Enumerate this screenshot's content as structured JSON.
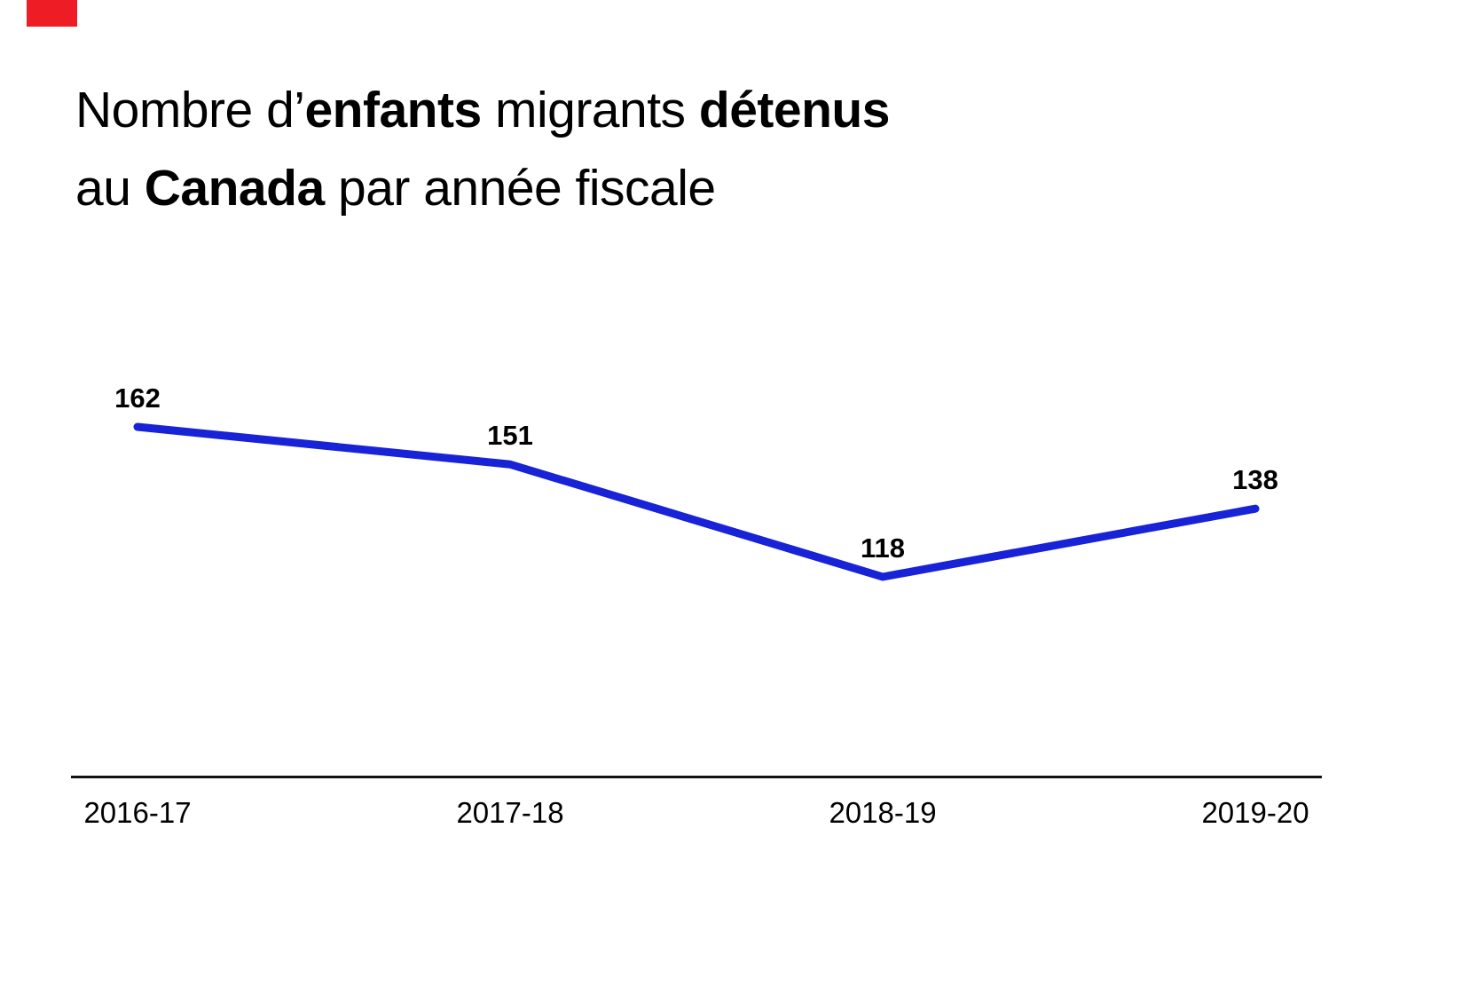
{
  "header": {
    "title_plain": "Nombre d’enfants migrants détenus au Canada par année fiscale",
    "title_segments": [
      {
        "text": "Nombre d’",
        "bold": false
      },
      {
        "text": "enfants",
        "bold": true
      },
      {
        "text": " migrants ",
        "bold": false
      },
      {
        "text": "détenus",
        "bold": true
      },
      {
        "br": true
      },
      {
        "text": "au ",
        "bold": false
      },
      {
        "text": "Canada",
        "bold": true
      },
      {
        "text": " par année fiscale",
        "bold": false
      }
    ]
  },
  "colors": {
    "accent_red": "#ee1c24",
    "line_blue": "#1822d6",
    "axis_black": "#111111",
    "text_black": "#000000",
    "background": "#ffffff"
  },
  "chart_data": {
    "type": "line",
    "title": "Nombre d’enfants migrants détenus au Canada par année fiscale",
    "categories": [
      "2016-17",
      "2017-18",
      "2018-19",
      "2019-20"
    ],
    "values": [
      162,
      151,
      118,
      138
    ],
    "xlabel": "",
    "ylabel": "",
    "line_color": "#1822d6",
    "line_width": 9,
    "grid": false,
    "y_axis_shown": false,
    "legend": "none",
    "data_labels": "above-points"
  }
}
